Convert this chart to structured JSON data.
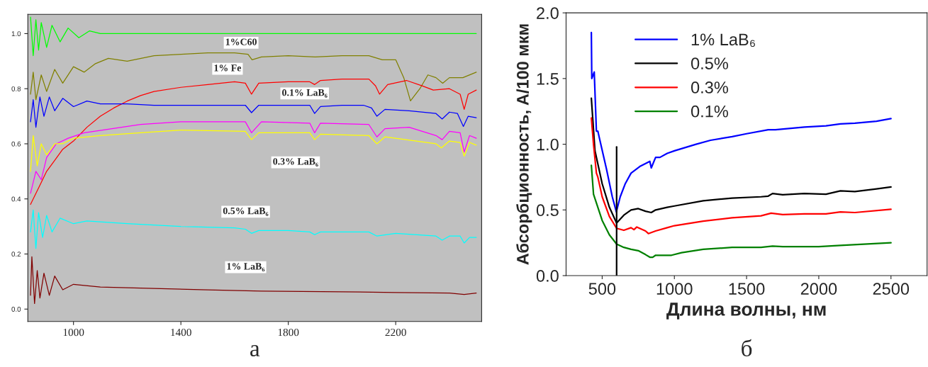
{
  "chart_data": [
    {
      "type": "line",
      "xlim": [
        830,
        2520
      ],
      "ylim": [
        -0.045,
        1.07
      ],
      "xticks": [
        1000,
        1400,
        1800,
        2200
      ],
      "yticks": [
        {
          "value": 0,
          "label": "0.0"
        },
        {
          "value": 0.2,
          "label": "0.2"
        },
        {
          "value": 0.4,
          "label": "0.4"
        },
        {
          "value": 0.6,
          "label": "0.6"
        },
        {
          "value": 0.8,
          "label": "0.8"
        },
        {
          "value": 1.0,
          "label": "1.0"
        }
      ],
      "grid": false,
      "legend": false,
      "series": [
        {
          "color": "#00ff00",
          "x": [
            840,
            850,
            860,
            870,
            880,
            900,
            920,
            950,
            980,
            1020,
            1060,
            1100,
            2500
          ],
          "values": [
            1.06,
            0.92,
            1.05,
            0.94,
            1.04,
            0.95,
            1.03,
            0.97,
            1.02,
            0.985,
            1.01,
            1.0,
            1.0
          ]
        },
        {
          "name": "1%C60",
          "color": "#808000",
          "x": [
            840,
            850,
            860,
            880,
            900,
            930,
            960,
            1000,
            1040,
            1080,
            1130,
            1200,
            1300,
            1400,
            1500,
            1600,
            1650,
            1665,
            1700,
            1800,
            1900,
            2000,
            2100,
            2150,
            2200,
            2230,
            2255,
            2290,
            2320,
            2350,
            2375,
            2400,
            2450,
            2500
          ],
          "values": [
            0.78,
            0.86,
            0.76,
            0.85,
            0.79,
            0.87,
            0.82,
            0.88,
            0.86,
            0.89,
            0.91,
            0.9,
            0.92,
            0.925,
            0.93,
            0.93,
            0.925,
            0.905,
            0.915,
            0.92,
            0.915,
            0.92,
            0.92,
            0.905,
            0.905,
            0.84,
            0.756,
            0.8,
            0.85,
            0.84,
            0.82,
            0.84,
            0.84,
            0.86
          ]
        },
        {
          "name": "1% Fe",
          "color": "#ff0000",
          "x": [
            840,
            860,
            880,
            900,
            930,
            960,
            1000,
            1050,
            1100,
            1150,
            1200,
            1250,
            1300,
            1400,
            1500,
            1600,
            1640,
            1663,
            1690,
            1800,
            1880,
            1898,
            1920,
            2000,
            2100,
            2125,
            2140,
            2170,
            2240,
            2300,
            2340,
            2400,
            2440,
            2455,
            2470,
            2500
          ],
          "values": [
            0.38,
            0.42,
            0.46,
            0.5,
            0.54,
            0.58,
            0.61,
            0.66,
            0.7,
            0.73,
            0.755,
            0.775,
            0.79,
            0.805,
            0.815,
            0.825,
            0.82,
            0.78,
            0.82,
            0.825,
            0.825,
            0.815,
            0.83,
            0.835,
            0.835,
            0.81,
            0.78,
            0.815,
            0.83,
            0.81,
            0.795,
            0.8,
            0.78,
            0.725,
            0.78,
            0.795
          ]
        },
        {
          "name": "0.1% LaB₆",
          "color": "#0000ff",
          "x": [
            840,
            850,
            860,
            875,
            890,
            910,
            930,
            960,
            1000,
            1050,
            1100,
            1200,
            1300,
            1400,
            1500,
            1640,
            1663,
            1690,
            1800,
            1880,
            1898,
            1920,
            2000,
            2080,
            2110,
            2130,
            2160,
            2250,
            2350,
            2373,
            2400,
            2430,
            2452,
            2470,
            2500
          ],
          "values": [
            0.68,
            0.76,
            0.66,
            0.77,
            0.7,
            0.77,
            0.72,
            0.765,
            0.735,
            0.755,
            0.745,
            0.745,
            0.74,
            0.74,
            0.74,
            0.74,
            0.713,
            0.74,
            0.74,
            0.74,
            0.71,
            0.735,
            0.74,
            0.74,
            0.73,
            0.7,
            0.725,
            0.72,
            0.71,
            0.69,
            0.715,
            0.71,
            0.663,
            0.7,
            0.695
          ]
        },
        {
          "color": "#ff00ff",
          "x": [
            840,
            860,
            880,
            900,
            936,
            980,
            1040,
            1108,
            1250,
            1400,
            1640,
            1663,
            1700,
            1880,
            1898,
            1920,
            2100,
            2130,
            2160,
            2250,
            2350,
            2373,
            2400,
            2440,
            2455,
            2475,
            2500
          ],
          "values": [
            0.42,
            0.5,
            0.47,
            0.55,
            0.6,
            0.62,
            0.64,
            0.65,
            0.67,
            0.68,
            0.68,
            0.64,
            0.68,
            0.675,
            0.64,
            0.675,
            0.67,
            0.625,
            0.655,
            0.66,
            0.63,
            0.615,
            0.645,
            0.64,
            0.57,
            0.63,
            0.62
          ]
        },
        {
          "name": "0.3% LaB₆",
          "color": "#ffff00",
          "x": [
            840,
            850,
            865,
            880,
            900,
            930,
            960,
            1000,
            1100,
            1250,
            1400,
            1640,
            1663,
            1690,
            1880,
            1898,
            1920,
            2100,
            2130,
            2160,
            2350,
            2370,
            2400,
            2440,
            2455,
            2475,
            2500
          ],
          "values": [
            0.5,
            0.63,
            0.52,
            0.6,
            0.56,
            0.6,
            0.6,
            0.62,
            0.63,
            0.64,
            0.65,
            0.645,
            0.615,
            0.64,
            0.64,
            0.615,
            0.635,
            0.63,
            0.6,
            0.625,
            0.6,
            0.585,
            0.61,
            0.605,
            0.555,
            0.605,
            0.595
          ]
        },
        {
          "name": "0.5% LaB₆",
          "color": "#00ffff",
          "x": [
            840,
            850,
            860,
            870,
            885,
            900,
            920,
            950,
            1000,
            1050,
            1200,
            1400,
            1600,
            1640,
            1663,
            1690,
            1800,
            1880,
            1898,
            1920,
            2100,
            2130,
            2200,
            2350,
            2373,
            2400,
            2440,
            2455,
            2475,
            2500
          ],
          "values": [
            0.28,
            0.36,
            0.22,
            0.35,
            0.26,
            0.34,
            0.28,
            0.33,
            0.31,
            0.32,
            0.31,
            0.3,
            0.295,
            0.29,
            0.275,
            0.285,
            0.285,
            0.28,
            0.27,
            0.28,
            0.28,
            0.265,
            0.275,
            0.265,
            0.25,
            0.265,
            0.265,
            0.24,
            0.26,
            0.26
          ]
        },
        {
          "name": "1% LaB₆",
          "color": "#800000",
          "x": [
            840,
            845,
            855,
            865,
            875,
            890,
            910,
            930,
            960,
            1000,
            1100,
            1300,
            1500,
            1700,
            2000,
            2200,
            2400,
            2455,
            2500
          ],
          "values": [
            0.05,
            0.19,
            0.02,
            0.14,
            0.04,
            0.13,
            0.05,
            0.12,
            0.07,
            0.09,
            0.08,
            0.075,
            0.07,
            0.065,
            0.063,
            0.06,
            0.058,
            0.053,
            0.058
          ]
        }
      ],
      "annotations": [
        "а"
      ]
    },
    {
      "type": "line",
      "xlabel": "Длина волны, нм",
      "ylabel": "Абсорбционность, A/100 мкм",
      "xlim": [
        250,
        2750
      ],
      "ylim": [
        0,
        2.0
      ],
      "xticks": [
        500,
        1000,
        1500,
        2000,
        2500
      ],
      "yticks": [
        {
          "value": 0,
          "label": "0.0"
        },
        {
          "value": 0.5,
          "label": "0.5"
        },
        {
          "value": 1.0,
          "label": "1.0"
        },
        {
          "value": 1.5,
          "label": "1.5"
        },
        {
          "value": 2.0,
          "label": "2.0"
        }
      ],
      "grid": false,
      "legend": "top left",
      "series": [
        {
          "name": "1% LaB₆",
          "color": "#0000ff",
          "x": [
            425,
            428,
            445,
            460,
            470,
            480,
            530,
            570,
            598,
            625,
            660,
            700,
            760,
            830,
            840,
            870,
            900,
            950,
            1000,
            1150,
            1250,
            1400,
            1500,
            1650,
            1700,
            1900,
            2050,
            2150,
            2250,
            2400,
            2500
          ],
          "values": [
            1.85,
            1.5,
            1.55,
            1.1,
            1.1,
            1.05,
            0.81,
            0.6,
            0.485,
            0.6,
            0.7,
            0.78,
            0.83,
            0.87,
            0.82,
            0.9,
            0.9,
            0.93,
            0.95,
            1.0,
            1.03,
            1.058,
            1.08,
            1.11,
            1.11,
            1.13,
            1.14,
            1.155,
            1.16,
            1.175,
            1.195
          ]
        },
        {
          "name": "0.5%",
          "color": "#000000",
          "x": [
            425,
            450,
            500,
            550,
            600,
            650,
            700,
            750,
            800,
            840,
            870,
            950,
            1000,
            1200,
            1400,
            1600,
            1650,
            1680,
            1750,
            1900,
            2050,
            2150,
            2250,
            2400,
            2500
          ],
          "values": [
            1.35,
            0.95,
            0.7,
            0.52,
            0.4,
            0.46,
            0.5,
            0.51,
            0.49,
            0.48,
            0.5,
            0.52,
            0.53,
            0.57,
            0.59,
            0.6,
            0.605,
            0.625,
            0.615,
            0.625,
            0.62,
            0.645,
            0.64,
            0.66,
            0.675
          ]
        },
        {
          "name": "0.3%",
          "color": "#ff0000",
          "x": [
            425,
            440,
            460,
            470,
            500,
            550,
            600,
            650,
            700,
            720,
            740,
            800,
            820,
            870,
            950,
            1000,
            1200,
            1400,
            1600,
            1670,
            1750,
            1900,
            2050,
            2150,
            2250,
            2500
          ],
          "values": [
            1.2,
            1.0,
            0.78,
            0.75,
            0.6,
            0.45,
            0.36,
            0.345,
            0.365,
            0.35,
            0.37,
            0.34,
            0.32,
            0.34,
            0.365,
            0.38,
            0.415,
            0.44,
            0.455,
            0.475,
            0.465,
            0.47,
            0.47,
            0.485,
            0.48,
            0.505
          ]
        },
        {
          "name": "0.1%",
          "color": "#008000",
          "x": [
            425,
            440,
            500,
            550,
            600,
            650,
            700,
            750,
            800,
            830,
            850,
            870,
            980,
            1050,
            1200,
            1400,
            1600,
            1680,
            1750,
            2000,
            2150,
            2500
          ],
          "values": [
            0.84,
            0.62,
            0.42,
            0.31,
            0.24,
            0.215,
            0.2,
            0.19,
            0.16,
            0.14,
            0.14,
            0.155,
            0.155,
            0.175,
            0.2,
            0.215,
            0.215,
            0.225,
            0.22,
            0.22,
            0.23,
            0.25
          ]
        },
        {
          "color": "#000000",
          "x": [
            600,
            600
          ],
          "values": [
            0,
            0.98
          ]
        }
      ],
      "annotations": [
        "б"
      ]
    }
  ]
}
